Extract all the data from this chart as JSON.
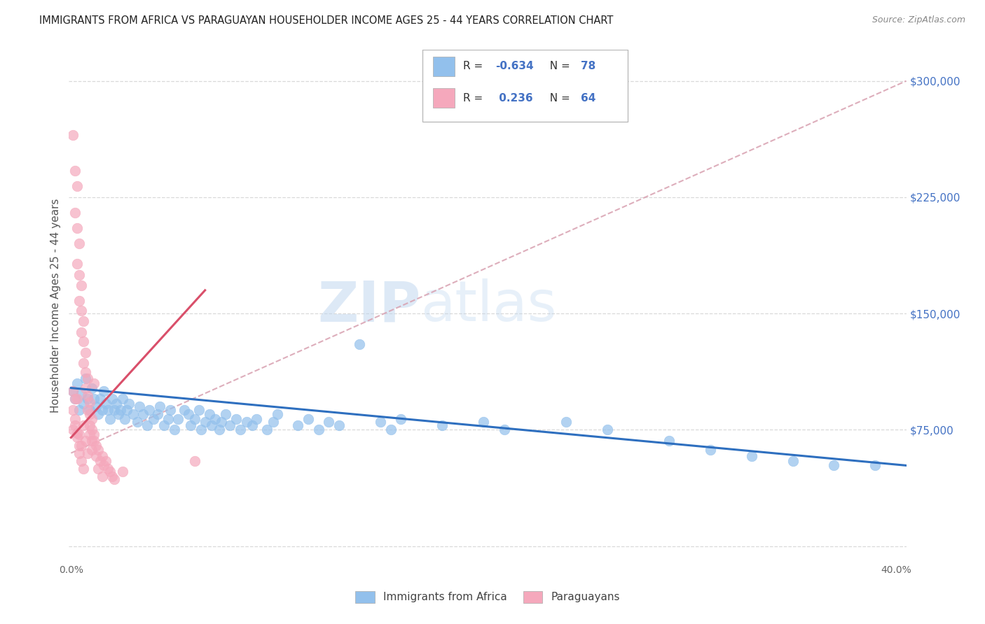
{
  "title": "IMMIGRANTS FROM AFRICA VS PARAGUAYAN HOUSEHOLDER INCOME AGES 25 - 44 YEARS CORRELATION CHART",
  "source": "Source: ZipAtlas.com",
  "ylabel": "Householder Income Ages 25 - 44 years",
  "yticks": [
    0,
    75000,
    150000,
    225000,
    300000
  ],
  "ymin": -10000,
  "ymax": 320000,
  "xmin": -0.001,
  "xmax": 0.405,
  "color_blue": "#92C0EC",
  "color_pink": "#F5A8BC",
  "color_blue_line": "#2E6FBF",
  "color_pink_line": "#D94F6A",
  "color_grey_line": "#D8A0B0",
  "axis_label_color": "#4472c4",
  "grid_color": "#D0D0D0",
  "watermark_zip": "ZIP",
  "watermark_atlas": "atlas",
  "blue_scatter": [
    [
      0.001,
      100000
    ],
    [
      0.002,
      95000
    ],
    [
      0.003,
      105000
    ],
    [
      0.004,
      88000
    ],
    [
      0.005,
      98000
    ],
    [
      0.006,
      92000
    ],
    [
      0.007,
      108000
    ],
    [
      0.008,
      95000
    ],
    [
      0.009,
      88000
    ],
    [
      0.01,
      102000
    ],
    [
      0.011,
      95000
    ],
    [
      0.012,
      90000
    ],
    [
      0.013,
      85000
    ],
    [
      0.014,
      95000
    ],
    [
      0.015,
      88000
    ],
    [
      0.016,
      100000
    ],
    [
      0.017,
      92000
    ],
    [
      0.018,
      88000
    ],
    [
      0.019,
      82000
    ],
    [
      0.02,
      95000
    ],
    [
      0.021,
      88000
    ],
    [
      0.022,
      92000
    ],
    [
      0.023,
      85000
    ],
    [
      0.024,
      88000
    ],
    [
      0.025,
      95000
    ],
    [
      0.026,
      82000
    ],
    [
      0.027,
      88000
    ],
    [
      0.028,
      92000
    ],
    [
      0.03,
      85000
    ],
    [
      0.032,
      80000
    ],
    [
      0.033,
      90000
    ],
    [
      0.035,
      85000
    ],
    [
      0.037,
      78000
    ],
    [
      0.038,
      88000
    ],
    [
      0.04,
      82000
    ],
    [
      0.042,
      85000
    ],
    [
      0.043,
      90000
    ],
    [
      0.045,
      78000
    ],
    [
      0.047,
      82000
    ],
    [
      0.048,
      88000
    ],
    [
      0.05,
      75000
    ],
    [
      0.052,
      82000
    ],
    [
      0.055,
      88000
    ],
    [
      0.057,
      85000
    ],
    [
      0.058,
      78000
    ],
    [
      0.06,
      82000
    ],
    [
      0.062,
      88000
    ],
    [
      0.063,
      75000
    ],
    [
      0.065,
      80000
    ],
    [
      0.067,
      85000
    ],
    [
      0.068,
      78000
    ],
    [
      0.07,
      82000
    ],
    [
      0.072,
      75000
    ],
    [
      0.073,
      80000
    ],
    [
      0.075,
      85000
    ],
    [
      0.077,
      78000
    ],
    [
      0.08,
      82000
    ],
    [
      0.082,
      75000
    ],
    [
      0.085,
      80000
    ],
    [
      0.088,
      78000
    ],
    [
      0.09,
      82000
    ],
    [
      0.095,
      75000
    ],
    [
      0.098,
      80000
    ],
    [
      0.1,
      85000
    ],
    [
      0.11,
      78000
    ],
    [
      0.115,
      82000
    ],
    [
      0.12,
      75000
    ],
    [
      0.125,
      80000
    ],
    [
      0.13,
      78000
    ],
    [
      0.14,
      130000
    ],
    [
      0.15,
      80000
    ],
    [
      0.155,
      75000
    ],
    [
      0.16,
      82000
    ],
    [
      0.18,
      78000
    ],
    [
      0.2,
      80000
    ],
    [
      0.21,
      75000
    ],
    [
      0.24,
      80000
    ],
    [
      0.26,
      75000
    ],
    [
      0.29,
      68000
    ],
    [
      0.31,
      62000
    ],
    [
      0.33,
      58000
    ],
    [
      0.35,
      55000
    ],
    [
      0.37,
      52000
    ],
    [
      0.39,
      52000
    ]
  ],
  "pink_scatter": [
    [
      0.001,
      265000
    ],
    [
      0.002,
      242000
    ],
    [
      0.003,
      232000
    ],
    [
      0.002,
      215000
    ],
    [
      0.003,
      205000
    ],
    [
      0.004,
      195000
    ],
    [
      0.003,
      182000
    ],
    [
      0.004,
      175000
    ],
    [
      0.005,
      168000
    ],
    [
      0.004,
      158000
    ],
    [
      0.005,
      152000
    ],
    [
      0.006,
      145000
    ],
    [
      0.005,
      138000
    ],
    [
      0.006,
      132000
    ],
    [
      0.007,
      125000
    ],
    [
      0.006,
      118000
    ],
    [
      0.007,
      112000
    ],
    [
      0.008,
      108000
    ],
    [
      0.007,
      102000
    ],
    [
      0.008,
      97000
    ],
    [
      0.009,
      93000
    ],
    [
      0.008,
      88000
    ],
    [
      0.009,
      85000
    ],
    [
      0.01,
      82000
    ],
    [
      0.009,
      78000
    ],
    [
      0.01,
      75000
    ],
    [
      0.011,
      72000
    ],
    [
      0.01,
      68000
    ],
    [
      0.011,
      105000
    ],
    [
      0.012,
      65000
    ],
    [
      0.001,
      88000
    ],
    [
      0.002,
      82000
    ],
    [
      0.003,
      95000
    ],
    [
      0.004,
      72000
    ],
    [
      0.005,
      65000
    ],
    [
      0.006,
      78000
    ],
    [
      0.007,
      68000
    ],
    [
      0.008,
      60000
    ],
    [
      0.009,
      72000
    ],
    [
      0.01,
      62000
    ],
    [
      0.011,
      68000
    ],
    [
      0.012,
      58000
    ],
    [
      0.013,
      62000
    ],
    [
      0.014,
      55000
    ],
    [
      0.015,
      58000
    ],
    [
      0.016,
      52000
    ],
    [
      0.017,
      55000
    ],
    [
      0.018,
      50000
    ],
    [
      0.019,
      48000
    ],
    [
      0.02,
      45000
    ],
    [
      0.021,
      43000
    ],
    [
      0.001,
      100000
    ],
    [
      0.002,
      95000
    ],
    [
      0.001,
      75000
    ],
    [
      0.003,
      70000
    ],
    [
      0.004,
      65000
    ],
    [
      0.005,
      55000
    ],
    [
      0.025,
      48000
    ],
    [
      0.013,
      50000
    ],
    [
      0.015,
      45000
    ],
    [
      0.06,
      55000
    ],
    [
      0.002,
      78000
    ],
    [
      0.003,
      73000
    ],
    [
      0.004,
      60000
    ],
    [
      0.006,
      50000
    ]
  ],
  "blue_trend_x": [
    0.0,
    0.405
  ],
  "blue_trend_y": [
    102000,
    52000
  ],
  "pink_trend_x": [
    0.0,
    0.065
  ],
  "pink_trend_y": [
    70000,
    165000
  ],
  "grey_trend_x": [
    0.0,
    0.405
  ],
  "grey_trend_y": [
    60000,
    300000
  ]
}
